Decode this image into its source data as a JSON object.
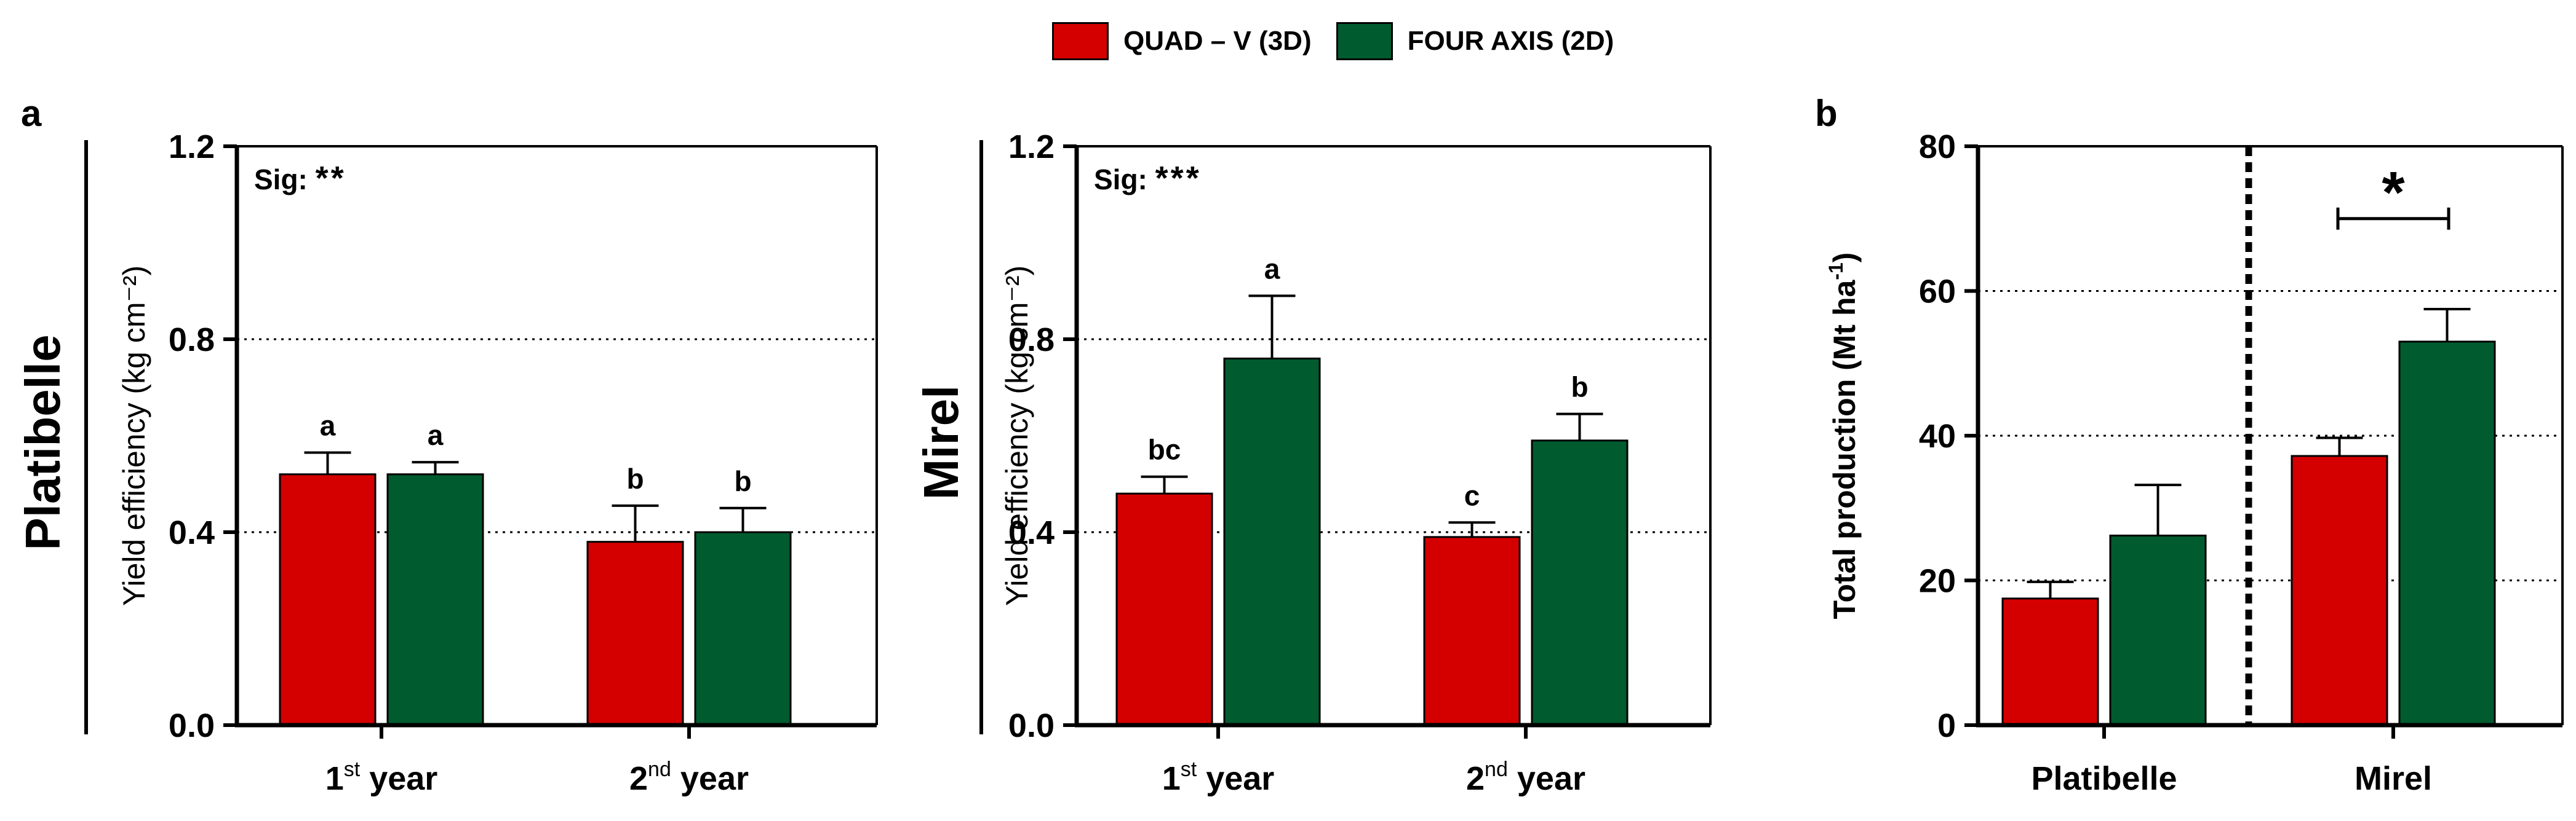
{
  "legend": {
    "series": [
      {
        "name": "QUAD – V (3D)",
        "color": "#d40000"
      },
      {
        "name": "FOUR AXIS (2D)",
        "color": "#005c2e"
      }
    ]
  },
  "panels": {
    "a": "a",
    "b": "b"
  },
  "cultivars": {
    "left": "Platibelle",
    "middle": "Mirel"
  },
  "colors": {
    "quad": "#d40000",
    "four": "#005c2e",
    "axis": "#000000"
  },
  "chart_data": [
    {
      "type": "bar",
      "id": "platibelle",
      "title": "",
      "ylabel": "Yield efficiency (kg cm⁻²)",
      "ylim": [
        0,
        1.2
      ],
      "yticks": [
        0.0,
        0.4,
        0.8,
        1.2
      ],
      "ytick_labels": [
        "0.0",
        "0.4",
        "0.8",
        "1.2"
      ],
      "gridlines": [
        0.4,
        0.8
      ],
      "sig": {
        "label": "Sig:",
        "stars": "**"
      },
      "categories": [
        {
          "main": "1",
          "sup": "st",
          "rest": " year"
        },
        {
          "main": "2",
          "sup": "nd",
          "rest": " year"
        }
      ],
      "series": [
        {
          "name": "QUAD – V (3D)",
          "color": "#d40000",
          "values": [
            0.52,
            0.38
          ],
          "errors": [
            0.045,
            0.075
          ],
          "letters": [
            "a",
            "b"
          ]
        },
        {
          "name": "FOUR AXIS (2D)",
          "color": "#005c2e",
          "values": [
            0.52,
            0.4
          ],
          "errors": [
            0.025,
            0.05
          ],
          "letters": [
            "a",
            "b"
          ]
        }
      ]
    },
    {
      "type": "bar",
      "id": "mirel",
      "title": "",
      "ylabel": "Yield efficiency (kg cm⁻²)",
      "ylim": [
        0,
        1.2
      ],
      "yticks": [
        0.0,
        0.4,
        0.8,
        1.2
      ],
      "ytick_labels": [
        "0.0",
        "0.4",
        "0.8",
        "1.2"
      ],
      "gridlines": [
        0.4,
        0.8
      ],
      "sig": {
        "label": "Sig:",
        "stars": "***"
      },
      "categories": [
        {
          "main": "1",
          "sup": "st",
          "rest": " year"
        },
        {
          "main": "2",
          "sup": "nd",
          "rest": " year"
        }
      ],
      "series": [
        {
          "name": "QUAD – V (3D)",
          "color": "#d40000",
          "values": [
            0.48,
            0.39
          ],
          "errors": [
            0.035,
            0.03
          ],
          "letters": [
            "bc",
            "c"
          ]
        },
        {
          "name": "FOUR AXIS (2D)",
          "color": "#005c2e",
          "values": [
            0.76,
            0.59
          ],
          "errors": [
            0.13,
            0.055
          ],
          "letters": [
            "a",
            "b"
          ]
        }
      ]
    },
    {
      "type": "bar",
      "id": "total",
      "title": "",
      "ylabel": "Total production (Mt ha",
      "ylabel_sup": "-1",
      "ylabel_end": ")",
      "ylim": [
        0,
        80
      ],
      "yticks": [
        0,
        20,
        40,
        60,
        80
      ],
      "ytick_labels": [
        "0",
        "20",
        "40",
        "60",
        "80"
      ],
      "gridlines": [
        20,
        40,
        60
      ],
      "categories": [
        {
          "main": "Platibelle",
          "sup": "",
          "rest": ""
        },
        {
          "main": "Mirel",
          "sup": "",
          "rest": ""
        }
      ],
      "series": [
        {
          "name": "QUAD – V (3D)",
          "color": "#d40000",
          "values": [
            17.5,
            37.2
          ],
          "errors": [
            2.3,
            2.5
          ],
          "letters": [
            "",
            ""
          ]
        },
        {
          "name": "FOUR AXIS (2D)",
          "color": "#005c2e",
          "values": [
            26.2,
            53.0
          ],
          "errors": [
            7.0,
            4.5
          ],
          "letters": [
            "",
            ""
          ]
        }
      ],
      "annotation": {
        "text": "*",
        "category": 1
      }
    }
  ]
}
